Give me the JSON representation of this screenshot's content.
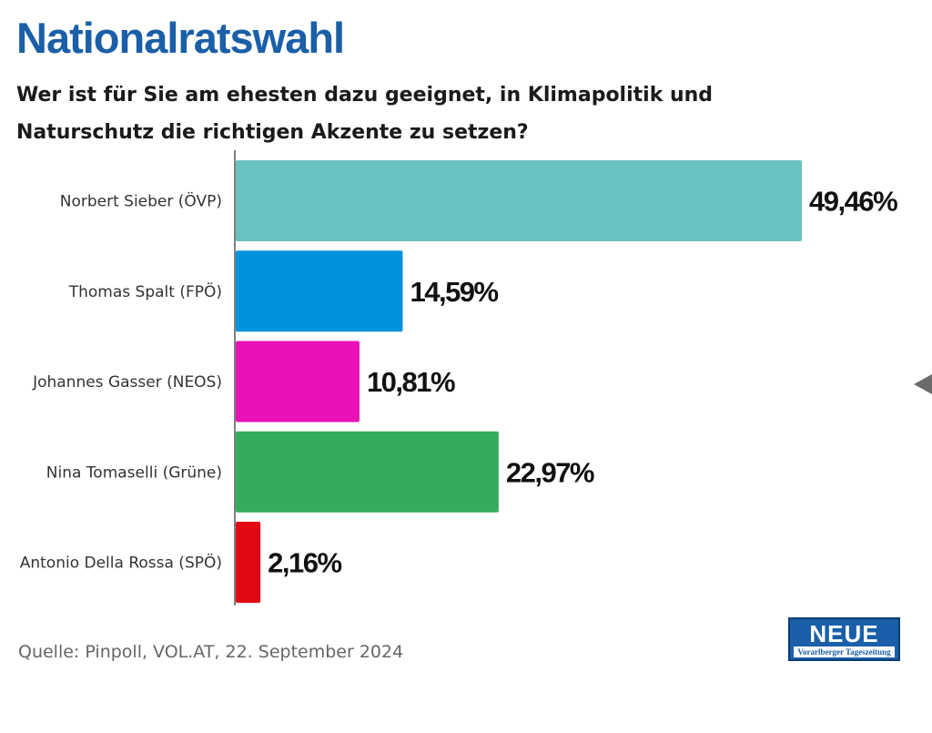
{
  "header": {
    "title": "Nationalratswahl",
    "subtitle": "Wer ist für Sie am ehesten dazu geeignet, in Klimapolitik und Naturschutz die richtigen Akzente zu setzen?"
  },
  "chart_data": {
    "type": "bar",
    "orientation": "horizontal",
    "categories": [
      "Norbert Sieber (ÖVP)",
      "Thomas Spalt (FPÖ)",
      "Johannes Gasser (NEOS)",
      "Nina Tomaselli (Grüne)",
      "Antonio Della Rossa (SPÖ)"
    ],
    "values": [
      49.46,
      14.59,
      10.81,
      22.97,
      2.16
    ],
    "value_labels": [
      "49,46%",
      "14,59%",
      "10,81%",
      "22,97%",
      "2,16%"
    ],
    "colors": [
      "#69c2bf",
      "#0092dc",
      "#e811b7",
      "#33ad5b",
      "#e30613"
    ],
    "xlim": [
      0,
      49.46
    ],
    "grid": false,
    "legend": "none",
    "title": "Nationalratswahl",
    "subtitle": "Wer ist für Sie am ehesten dazu geeignet, in Klimapolitik und Naturschutz die richtigen Akzente zu setzen?"
  },
  "footer": {
    "source": "Quelle: Pinpoll, VOL.AT, 22. September 2024",
    "logo_main": "NEUE",
    "logo_sub": "Vorarlberger Tageszeitung"
  },
  "icons": {
    "nav": "chevron-left-icon"
  },
  "colors": {
    "brand": "#1a5fa8",
    "axis": "#555555"
  }
}
